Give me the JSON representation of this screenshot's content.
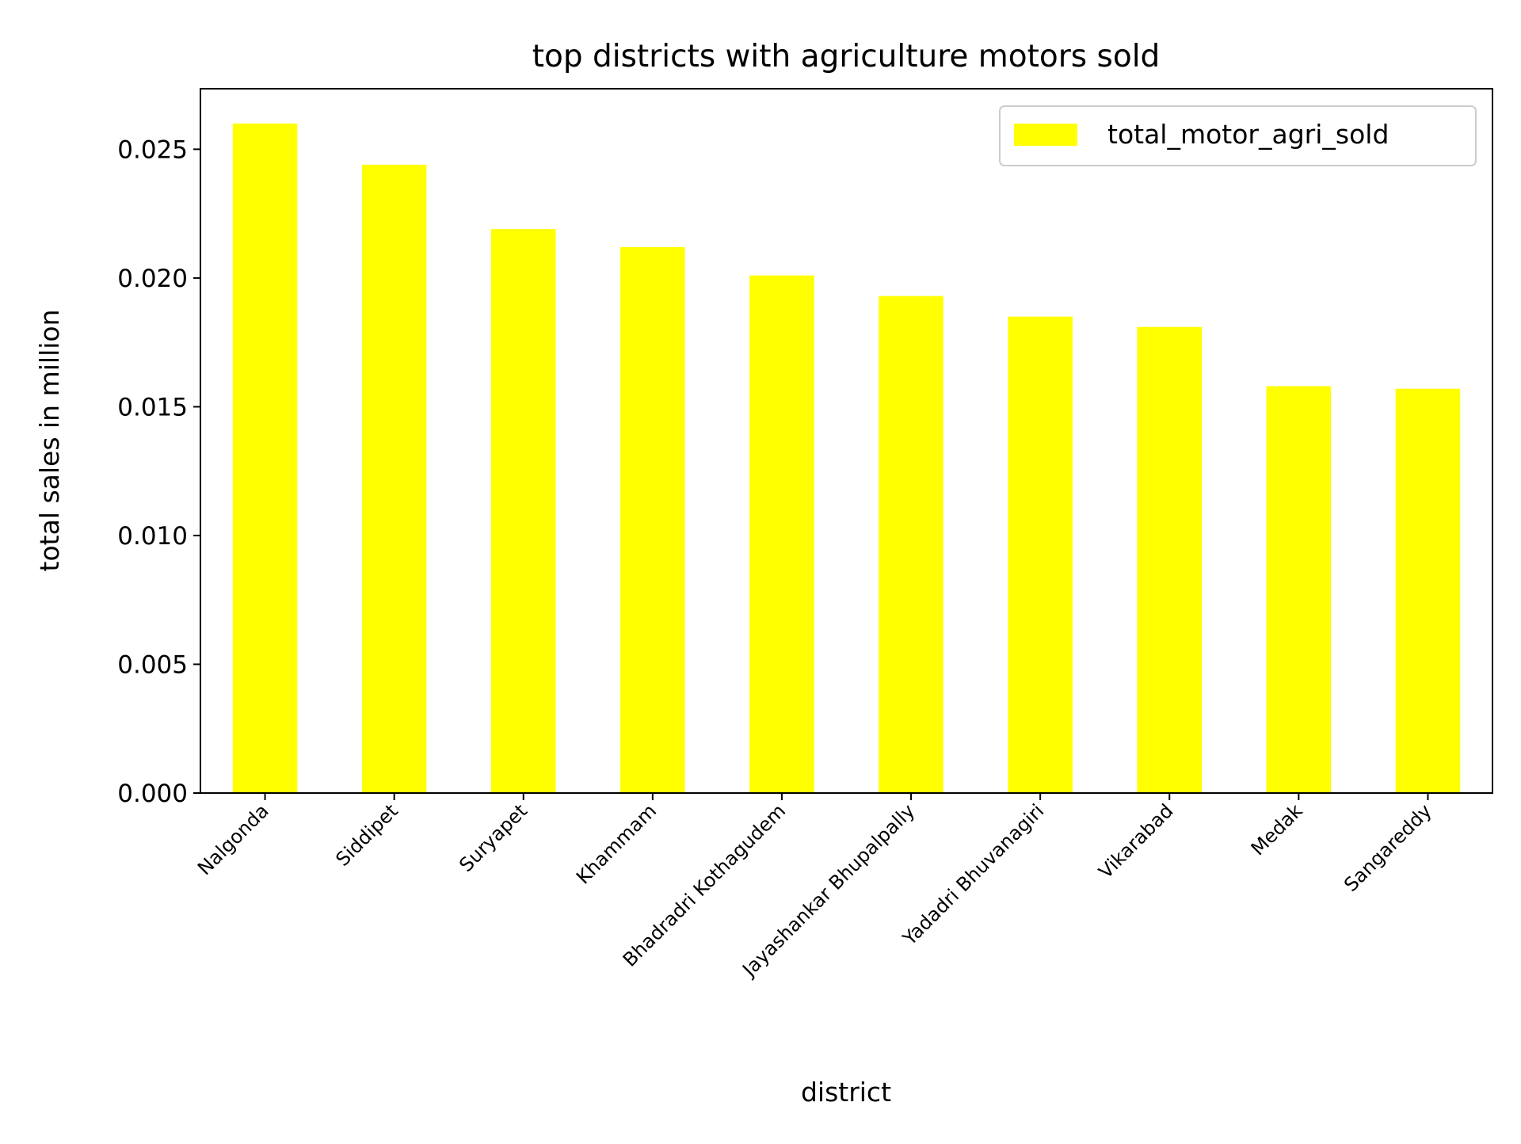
{
  "chart_data": {
    "type": "bar",
    "title": "top districts with agriculture motors sold",
    "xlabel": "district",
    "ylabel": "total sales in million",
    "categories": [
      "Nalgonda",
      "Siddipet",
      "Suryapet",
      "Khammam",
      "Bhadradri Kothagudem",
      "Jayashankar Bhupalpally",
      "Yadadri Bhuvanagiri",
      "Vikarabad",
      "Medak",
      "Sangareddy"
    ],
    "series": [
      {
        "name": "total_motor_agri_sold",
        "color": "#ffff00",
        "values": [
          0.026,
          0.0244,
          0.0219,
          0.0212,
          0.0201,
          0.0193,
          0.0185,
          0.0181,
          0.0158,
          0.0157
        ]
      }
    ],
    "ylim": [
      0,
      0.02735
    ],
    "yticks": [
      "0.000",
      "0.005",
      "0.010",
      "0.015",
      "0.020",
      "0.025"
    ],
    "ytick_values": [
      0,
      0.005,
      0.01,
      0.015,
      0.02,
      0.025
    ],
    "grid": false,
    "legend_position": "top-right"
  }
}
